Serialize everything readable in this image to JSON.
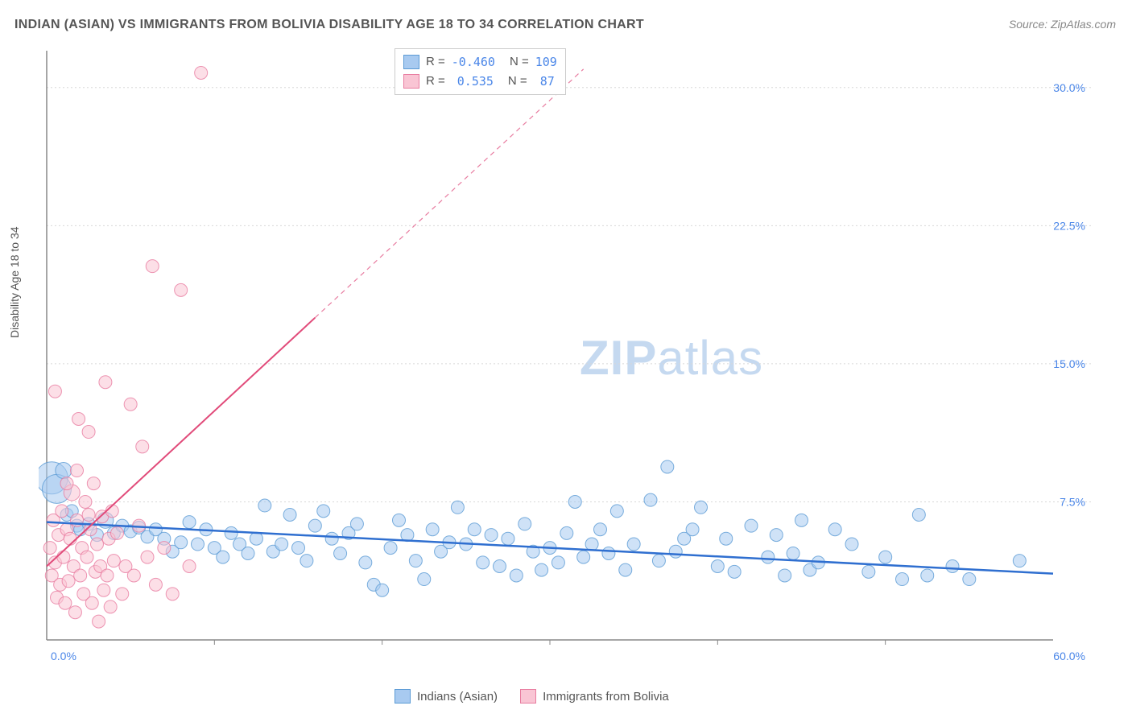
{
  "title": "INDIAN (ASIAN) VS IMMIGRANTS FROM BOLIVIA DISABILITY AGE 18 TO 34 CORRELATION CHART",
  "source": "Source: ZipAtlas.com",
  "ylabel": "Disability Age 18 to 34",
  "watermark": {
    "part1": "ZIP",
    "part2": "atlas"
  },
  "chart": {
    "type": "scatter",
    "xlim": [
      0,
      60
    ],
    "ylim": [
      0,
      32
    ],
    "y_ticks": [
      7.5,
      15.0,
      22.5,
      30.0
    ],
    "y_tick_labels": [
      "7.5%",
      "15.0%",
      "22.5%",
      "30.0%"
    ],
    "x_ticks": [
      0,
      60
    ],
    "x_tick_labels": [
      "0.0%",
      "60.0%"
    ],
    "x_minor_ticks": [
      10,
      20,
      30,
      40,
      50
    ],
    "background_color": "#ffffff",
    "grid_color": "#d8d8d8",
    "axis_color": "#888888",
    "series": [
      {
        "id": "blue",
        "label": "Indians (Asian)",
        "fill": "#a8caf0",
        "stroke": "#5b9bd5",
        "opacity": 0.55,
        "trend": {
          "color": "#2f6fd0",
          "x1": 0,
          "y1": 6.4,
          "x2": 60,
          "y2": 3.6,
          "width": 2.5
        },
        "stats": {
          "R": "-0.460",
          "N": "109"
        },
        "points": [
          [
            0.3,
            8.8,
            20
          ],
          [
            0.6,
            8.2,
            18
          ],
          [
            1.0,
            9.2,
            10
          ],
          [
            1.2,
            6.8,
            8
          ],
          [
            1.5,
            7.0,
            8
          ],
          [
            1.8,
            6.2,
            8
          ],
          [
            2.0,
            6.0,
            8
          ],
          [
            2.5,
            6.3,
            8
          ],
          [
            3.0,
            5.7,
            8
          ],
          [
            3.5,
            6.5,
            10
          ],
          [
            4.0,
            5.8,
            8
          ],
          [
            4.5,
            6.2,
            8
          ],
          [
            5.0,
            5.9,
            8
          ],
          [
            5.5,
            6.1,
            8
          ],
          [
            6.0,
            5.6,
            8
          ],
          [
            6.5,
            6.0,
            8
          ],
          [
            7.0,
            5.5,
            8
          ],
          [
            7.5,
            4.8,
            8
          ],
          [
            8.0,
            5.3,
            8
          ],
          [
            8.5,
            6.4,
            8
          ],
          [
            9.0,
            5.2,
            8
          ],
          [
            9.5,
            6.0,
            8
          ],
          [
            10.0,
            5.0,
            8
          ],
          [
            10.5,
            4.5,
            8
          ],
          [
            11.0,
            5.8,
            8
          ],
          [
            11.5,
            5.2,
            8
          ],
          [
            12.0,
            4.7,
            8
          ],
          [
            12.5,
            5.5,
            8
          ],
          [
            13.0,
            7.3,
            8
          ],
          [
            13.5,
            4.8,
            8
          ],
          [
            14.0,
            5.2,
            8
          ],
          [
            14.5,
            6.8,
            8
          ],
          [
            15.0,
            5.0,
            8
          ],
          [
            15.5,
            4.3,
            8
          ],
          [
            16.0,
            6.2,
            8
          ],
          [
            16.5,
            7.0,
            8
          ],
          [
            17.0,
            5.5,
            8
          ],
          [
            17.5,
            4.7,
            8
          ],
          [
            18.0,
            5.8,
            8
          ],
          [
            18.5,
            6.3,
            8
          ],
          [
            19.0,
            4.2,
            8
          ],
          [
            19.5,
            3.0,
            8
          ],
          [
            20.0,
            2.7,
            8
          ],
          [
            20.5,
            5.0,
            8
          ],
          [
            21.0,
            6.5,
            8
          ],
          [
            21.5,
            5.7,
            8
          ],
          [
            22.0,
            4.3,
            8
          ],
          [
            22.5,
            3.3,
            8
          ],
          [
            23.0,
            6.0,
            8
          ],
          [
            23.5,
            4.8,
            8
          ],
          [
            24.0,
            5.3,
            8
          ],
          [
            24.5,
            7.2,
            8
          ],
          [
            25.0,
            5.2,
            8
          ],
          [
            25.5,
            6.0,
            8
          ],
          [
            26.0,
            4.2,
            8
          ],
          [
            26.5,
            5.7,
            8
          ],
          [
            27.0,
            4.0,
            8
          ],
          [
            27.5,
            5.5,
            8
          ],
          [
            28.0,
            3.5,
            8
          ],
          [
            28.5,
            6.3,
            8
          ],
          [
            29.0,
            4.8,
            8
          ],
          [
            29.5,
            3.8,
            8
          ],
          [
            30.0,
            5.0,
            8
          ],
          [
            30.5,
            4.2,
            8
          ],
          [
            31.0,
            5.8,
            8
          ],
          [
            31.5,
            7.5,
            8
          ],
          [
            32.0,
            4.5,
            8
          ],
          [
            32.5,
            5.2,
            8
          ],
          [
            33.0,
            6.0,
            8
          ],
          [
            33.5,
            4.7,
            8
          ],
          [
            34.0,
            7.0,
            8
          ],
          [
            34.5,
            3.8,
            8
          ],
          [
            35.0,
            5.2,
            8
          ],
          [
            36.0,
            7.6,
            8
          ],
          [
            36.5,
            4.3,
            8
          ],
          [
            37.0,
            9.4,
            8
          ],
          [
            37.5,
            4.8,
            8
          ],
          [
            38.0,
            5.5,
            8
          ],
          [
            38.5,
            6.0,
            8
          ],
          [
            39.0,
            7.2,
            8
          ],
          [
            40.0,
            4.0,
            8
          ],
          [
            40.5,
            5.5,
            8
          ],
          [
            41.0,
            3.7,
            8
          ],
          [
            42.0,
            6.2,
            8
          ],
          [
            43.0,
            4.5,
            8
          ],
          [
            43.5,
            5.7,
            8
          ],
          [
            44.0,
            3.5,
            8
          ],
          [
            44.5,
            4.7,
            8
          ],
          [
            45.0,
            6.5,
            8
          ],
          [
            45.5,
            3.8,
            8
          ],
          [
            46.0,
            4.2,
            8
          ],
          [
            47.0,
            6.0,
            8
          ],
          [
            48.0,
            5.2,
            8
          ],
          [
            49.0,
            3.7,
            8
          ],
          [
            50.0,
            4.5,
            8
          ],
          [
            51.0,
            3.3,
            8
          ],
          [
            52.0,
            6.8,
            8
          ],
          [
            52.5,
            3.5,
            8
          ],
          [
            54.0,
            4.0,
            8
          ],
          [
            55.0,
            3.3,
            8
          ],
          [
            58.0,
            4.3,
            8
          ]
        ]
      },
      {
        "id": "pink",
        "label": "Immigrants from Bolivia",
        "fill": "#f9c5d4",
        "stroke": "#e87ca0",
        "opacity": 0.55,
        "trend_solid": {
          "color": "#e14b7a",
          "x1": 0,
          "y1": 4.0,
          "x2": 16,
          "y2": 17.5,
          "width": 2
        },
        "trend_dash": {
          "color": "#e87ca0",
          "x1": 16,
          "y1": 17.5,
          "x2": 32,
          "y2": 31.0,
          "width": 1.2
        },
        "stats": {
          "R": "0.535",
          "N": "87"
        },
        "points": [
          [
            0.2,
            5.0,
            8
          ],
          [
            0.3,
            3.5,
            8
          ],
          [
            0.4,
            6.5,
            8
          ],
          [
            0.5,
            4.2,
            8
          ],
          [
            0.6,
            2.3,
            8
          ],
          [
            0.7,
            5.7,
            8
          ],
          [
            0.8,
            3.0,
            8
          ],
          [
            0.9,
            7.0,
            8
          ],
          [
            1.0,
            4.5,
            8
          ],
          [
            1.1,
            2.0,
            8
          ],
          [
            1.2,
            6.0,
            8
          ],
          [
            1.3,
            3.2,
            8
          ],
          [
            1.4,
            5.5,
            8
          ],
          [
            1.5,
            8.0,
            10
          ],
          [
            1.6,
            4.0,
            8
          ],
          [
            1.7,
            1.5,
            8
          ],
          [
            1.8,
            6.5,
            8
          ],
          [
            1.9,
            12.0,
            8
          ],
          [
            2.0,
            3.5,
            8
          ],
          [
            2.1,
            5.0,
            8
          ],
          [
            2.2,
            2.5,
            8
          ],
          [
            2.3,
            7.5,
            8
          ],
          [
            2.4,
            4.5,
            8
          ],
          [
            2.5,
            11.3,
            8
          ],
          [
            2.6,
            6.0,
            8
          ],
          [
            2.7,
            2.0,
            8
          ],
          [
            2.8,
            8.5,
            8
          ],
          [
            2.9,
            3.7,
            8
          ],
          [
            3.0,
            5.2,
            8
          ],
          [
            3.1,
            1.0,
            8
          ],
          [
            3.2,
            4.0,
            8
          ],
          [
            3.3,
            6.7,
            8
          ],
          [
            3.4,
            2.7,
            8
          ],
          [
            3.5,
            14.0,
            8
          ],
          [
            3.6,
            3.5,
            8
          ],
          [
            3.7,
            5.5,
            8
          ],
          [
            3.8,
            1.8,
            8
          ],
          [
            3.9,
            7.0,
            8
          ],
          [
            4.0,
            4.3,
            8
          ],
          [
            4.2,
            5.8,
            8
          ],
          [
            4.5,
            2.5,
            8
          ],
          [
            4.7,
            4.0,
            8
          ],
          [
            5.0,
            12.8,
            8
          ],
          [
            5.2,
            3.5,
            8
          ],
          [
            5.5,
            6.2,
            8
          ],
          [
            5.7,
            10.5,
            8
          ],
          [
            6.0,
            4.5,
            8
          ],
          [
            6.3,
            20.3,
            8
          ],
          [
            6.5,
            3.0,
            8
          ],
          [
            7.0,
            5.0,
            8
          ],
          [
            7.5,
            2.5,
            8
          ],
          [
            8.0,
            19.0,
            8
          ],
          [
            8.5,
            4.0,
            8
          ],
          [
            9.2,
            30.8,
            8
          ],
          [
            0.5,
            13.5,
            8
          ],
          [
            1.2,
            8.5,
            8
          ],
          [
            1.8,
            9.2,
            8
          ],
          [
            2.5,
            6.8,
            8
          ]
        ]
      }
    ]
  },
  "stats_labels": {
    "R": "R =",
    "N": "N ="
  },
  "legend": [
    {
      "swatch_fill": "#a8caf0",
      "swatch_stroke": "#5b9bd5",
      "label": "Indians (Asian)"
    },
    {
      "swatch_fill": "#f9c5d4",
      "swatch_stroke": "#e87ca0",
      "label": "Immigrants from Bolivia"
    }
  ]
}
